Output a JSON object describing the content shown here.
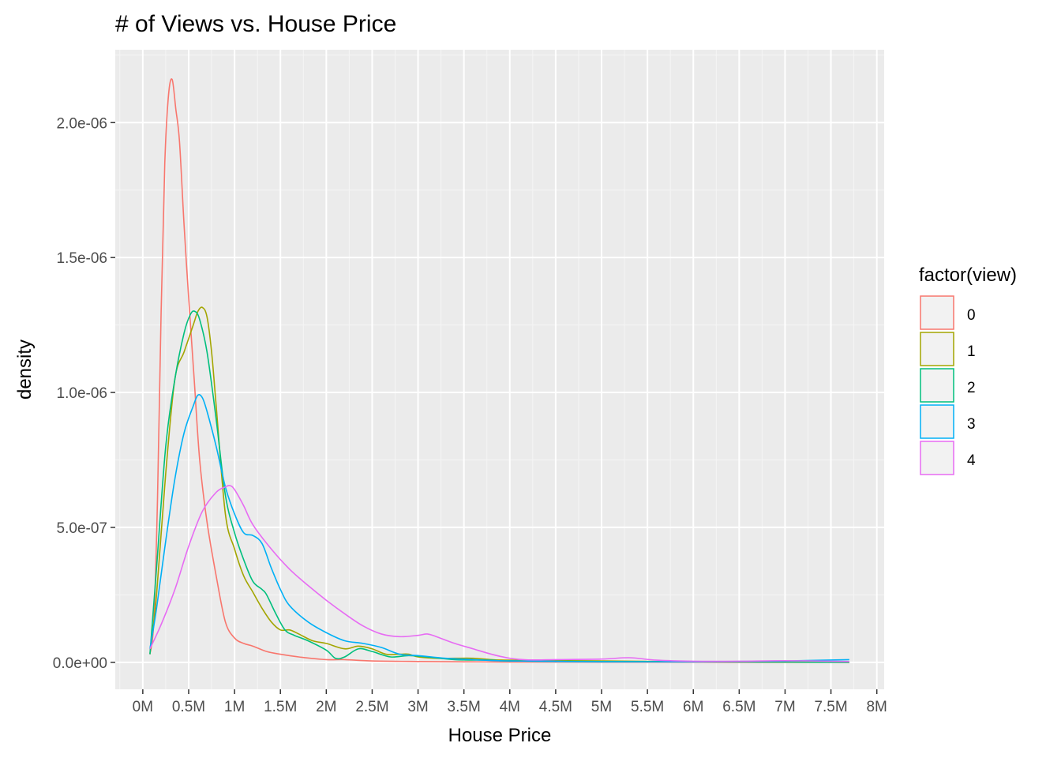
{
  "chart_data": {
    "type": "line",
    "title": "# of Views vs. House Price",
    "xlabel": "House Price",
    "ylabel": "density",
    "xlim": [
      -300000,
      8080000
    ],
    "ylim": [
      -1e-07,
      2.27e-06
    ],
    "x_ticks": [
      {
        "value": 0,
        "label": "0M"
      },
      {
        "value": 500000,
        "label": "0.5M"
      },
      {
        "value": 1000000,
        "label": "1M"
      },
      {
        "value": 1500000,
        "label": "1.5M"
      },
      {
        "value": 2000000,
        "label": "2M"
      },
      {
        "value": 2500000,
        "label": "2.5M"
      },
      {
        "value": 3000000,
        "label": "3M"
      },
      {
        "value": 3500000,
        "label": "3.5M"
      },
      {
        "value": 4000000,
        "label": "4M"
      },
      {
        "value": 4500000,
        "label": "4.5M"
      },
      {
        "value": 5000000,
        "label": "5M"
      },
      {
        "value": 5500000,
        "label": "5.5M"
      },
      {
        "value": 6000000,
        "label": "6M"
      },
      {
        "value": 6500000,
        "label": "6.5M"
      },
      {
        "value": 7000000,
        "label": "7M"
      },
      {
        "value": 7500000,
        "label": "7.5M"
      },
      {
        "value": 8000000,
        "label": "8M"
      }
    ],
    "y_ticks": [
      {
        "value": 0,
        "label": "0.0e+00"
      },
      {
        "value": 5e-07,
        "label": "5.0e-07"
      },
      {
        "value": 1e-06,
        "label": "1.0e-06"
      },
      {
        "value": 1.5e-06,
        "label": "1.5e-06"
      },
      {
        "value": 2e-06,
        "label": "2.0e-06"
      }
    ],
    "grid": true,
    "background": "#ebebeb",
    "legend": {
      "title": "factor(view)",
      "position": "right"
    },
    "series": [
      {
        "name": "0",
        "color": "#F8766D",
        "x": [
          78000,
          120000,
          160000,
          200000,
          240000,
          280000,
          320000,
          360000,
          400000,
          450000,
          500000,
          560000,
          620000,
          700000,
          800000,
          900000,
          1000000,
          1100000,
          1200000,
          1350000,
          1500000,
          1700000,
          2000000,
          2200000,
          2500000,
          3000000,
          3500000,
          4000000,
          5000000,
          6000000,
          7000000,
          7700000
        ],
        "y": [
          3e-08,
          1.5e-07,
          6e-07,
          1.3e-06,
          1.85e-06,
          2.1e-06,
          2.16e-06,
          2.05e-06,
          1.93e-06,
          1.62e-06,
          1.35e-06,
          1.05e-06,
          7.5e-07,
          5.2e-07,
          3.2e-07,
          1.5e-07,
          9e-08,
          7e-08,
          6e-08,
          4e-08,
          3e-08,
          2e-08,
          1e-08,
          1e-08,
          5e-09,
          3e-09,
          2e-09,
          1e-09,
          5e-10,
          2e-10,
          1e-10,
          0
        ]
      },
      {
        "name": "1",
        "color": "#A3A500",
        "x": [
          78000,
          150000,
          250000,
          350000,
          450000,
          550000,
          600000,
          650000,
          700000,
          750000,
          800000,
          900000,
          1000000,
          1100000,
          1200000,
          1300000,
          1400000,
          1500000,
          1600000,
          1700000,
          1850000,
          2000000,
          2200000,
          2350000,
          2500000,
          2650000,
          2800000,
          2900000,
          3000000,
          3200000,
          3400000,
          3600000,
          3800000,
          4000000,
          5000000,
          6000000,
          7000000,
          7700000
        ],
        "y": [
          3e-08,
          2.5e-07,
          7e-07,
          1.05e-06,
          1.15e-06,
          1.25e-06,
          1.3e-06,
          1.315e-06,
          1.28e-06,
          1.15e-06,
          9.5e-07,
          5.5e-07,
          4.2e-07,
          3.2e-07,
          2.6e-07,
          2e-07,
          1.5e-07,
          1.2e-07,
          1.2e-07,
          1.05e-07,
          8e-08,
          7e-08,
          5e-08,
          6e-08,
          5e-08,
          3e-08,
          3e-08,
          3e-08,
          2e-08,
          1.5e-08,
          1.5e-08,
          1.5e-08,
          1e-08,
          8e-09,
          5e-09,
          2e-09,
          1e-09,
          0
        ]
      },
      {
        "name": "2",
        "color": "#00BF7D",
        "x": [
          78000,
          150000,
          250000,
          350000,
          450000,
          520000,
          570000,
          620000,
          700000,
          800000,
          900000,
          1000000,
          1100000,
          1200000,
          1300000,
          1350000,
          1450000,
          1550000,
          1650000,
          1800000,
          2000000,
          2100000,
          2200000,
          2350000,
          2500000,
          2700000,
          2900000,
          3100000,
          3400000,
          3800000,
          4000000,
          5000000,
          6000000,
          7000000,
          7700000
        ],
        "y": [
          3e-08,
          3.5e-07,
          8e-07,
          1.05e-06,
          1.22e-06,
          1.29e-06,
          1.3e-06,
          1.27e-06,
          1.15e-06,
          9e-07,
          6.2e-07,
          4.8e-07,
          3.8e-07,
          3e-07,
          2.7e-07,
          2.5e-07,
          1.8e-07,
          1.2e-07,
          1e-07,
          8e-08,
          4.5e-08,
          1.5e-08,
          2e-08,
          5e-08,
          4e-08,
          2e-08,
          2.5e-08,
          2e-08,
          1e-08,
          8e-09,
          5e-09,
          3e-09,
          2e-09,
          1e-09,
          0
        ]
      },
      {
        "name": "3",
        "color": "#00B0F6",
        "x": [
          78000,
          150000,
          250000,
          350000,
          450000,
          550000,
          600000,
          650000,
          700000,
          800000,
          900000,
          1000000,
          1100000,
          1200000,
          1300000,
          1400000,
          1500000,
          1600000,
          1800000,
          2000000,
          2200000,
          2400000,
          2600000,
          2800000,
          3000000,
          3300000,
          3600000,
          4000000,
          5000000,
          6000000,
          7000000,
          7700000
        ],
        "y": [
          5e-08,
          2e-07,
          4.5e-07,
          6.8e-07,
          8.5e-07,
          9.5e-07,
          9.9e-07,
          9.8e-07,
          9.3e-07,
          8e-07,
          6.5e-07,
          5.5e-07,
          4.8e-07,
          4.7e-07,
          4.4e-07,
          3.5e-07,
          2.7e-07,
          2.1e-07,
          1.5e-07,
          1.1e-07,
          8e-08,
          7e-08,
          5.5e-08,
          3e-08,
          2.5e-08,
          1.5e-08,
          1e-08,
          5e-09,
          2e-09,
          2e-09,
          5e-09,
          1e-08
        ]
      },
      {
        "name": "4",
        "color": "#E76BF3",
        "x": [
          78000,
          200000,
          350000,
          500000,
          650000,
          800000,
          900000,
          950000,
          1000000,
          1100000,
          1200000,
          1400000,
          1600000,
          1800000,
          2000000,
          2200000,
          2400000,
          2600000,
          2800000,
          3000000,
          3100000,
          3200000,
          3400000,
          3600000,
          3800000,
          4000000,
          4200000,
          4500000,
          5000000,
          5300000,
          5600000,
          6000000,
          6500000,
          7000000,
          7700000
        ],
        "y": [
          5e-08,
          1.4e-07,
          2.7e-07,
          4.3e-07,
          5.6e-07,
          6.3e-07,
          6.5e-07,
          6.55e-07,
          6.4e-07,
          5.8e-07,
          5.1e-07,
          4.2e-07,
          3.45e-07,
          2.85e-07,
          2.3e-07,
          1.8e-07,
          1.35e-07,
          1.05e-07,
          9.5e-08,
          1e-07,
          1.05e-07,
          9.5e-08,
          7e-08,
          5e-08,
          3e-08,
          1.5e-08,
          9e-09,
          1e-08,
          1.2e-08,
          1.7e-08,
          8e-09,
          4e-09,
          4e-09,
          6e-09,
          3e-09
        ]
      }
    ]
  }
}
